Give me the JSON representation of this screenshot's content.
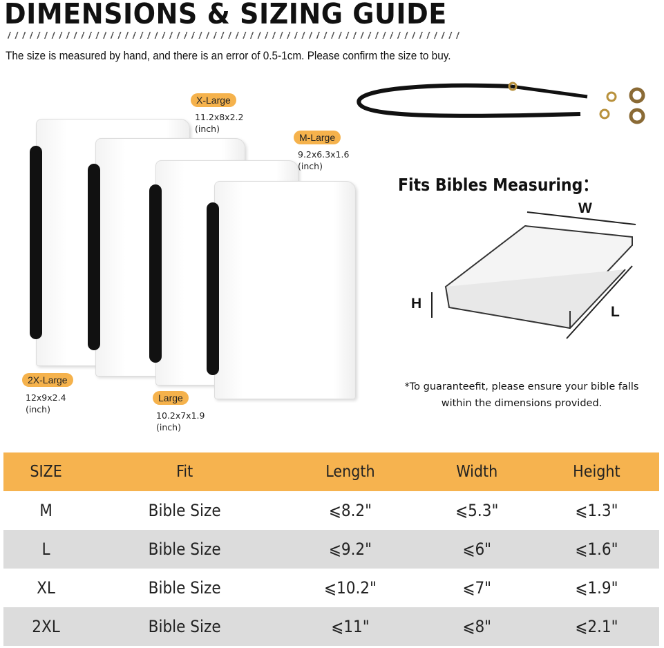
{
  "header": {
    "title": "DIMENSIONS & SIZING GUIDE",
    "subtitle": "The size is measured by hand, and there is an error of 0.5-1cm. Please confirm the size to buy."
  },
  "sizes": [
    {
      "label": "X-Large",
      "dims": "11.2x8x2.2",
      "unit": "(inch)"
    },
    {
      "label": "M-Large",
      "dims": "9.2x6.3x1.6",
      "unit": "(inch)"
    },
    {
      "label": "2X-Large",
      "dims": "12x9x2.4",
      "unit": "(inch)"
    },
    {
      "label": "Large",
      "dims": "10.2x7x1.9",
      "unit": "(inch)"
    }
  ],
  "measure": {
    "title": "Fits Bibles Measuring：",
    "w": "W",
    "h": "H",
    "l": "L",
    "note_line1": "*To guaranteefit, please ensure your bible falls",
    "note_line2": "within the dimensions provided."
  },
  "table": {
    "headers": [
      "SIZE",
      "Fit",
      "Length",
      "Width",
      "Height"
    ],
    "rows": [
      [
        "M",
        "Bible Size",
        "⩽8.2\"",
        "⩽5.3\"",
        "⩽1.3\""
      ],
      [
        "L",
        "Bible Size",
        "⩽9.2\"",
        "⩽6\"",
        "⩽1.6\""
      ],
      [
        "XL",
        "Bible Size",
        "⩽10.2\"",
        "⩽7\"",
        "⩽1.9\""
      ],
      [
        "2XL",
        "Bible Size",
        "⩽11\"",
        "⩽8\"",
        "⩽2.1\""
      ]
    ]
  },
  "colors": {
    "accent": "#f6b34f",
    "row_alt": "#dcdcdc"
  }
}
